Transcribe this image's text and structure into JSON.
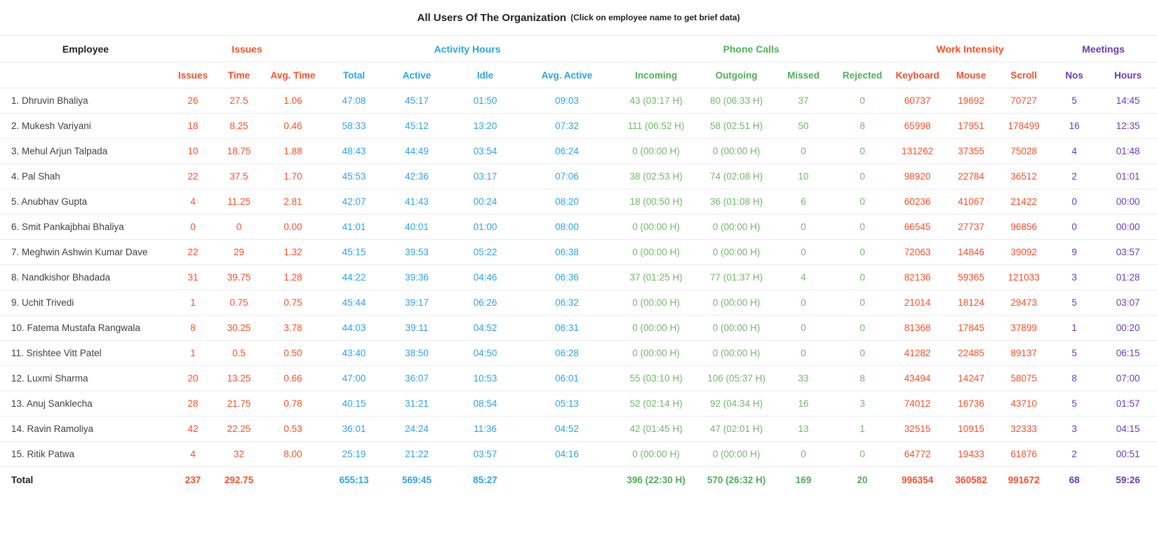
{
  "title": {
    "main": "All Users Of The Organization",
    "hint": "(Click on employee name to get brief data)"
  },
  "colors": {
    "red": "#fb4c24",
    "blue": "#29a3e6",
    "green": "#6dba63",
    "green_head": "#4caf55",
    "purple": "#6939bb",
    "text_dark": "#202124",
    "text_name": "#3c4043",
    "border": "#ececec"
  },
  "table": {
    "groups": [
      {
        "label": "Employee",
        "span": 1,
        "color": "dark"
      },
      {
        "label": "Issues",
        "span": 3,
        "color": "red"
      },
      {
        "label": "Activity Hours",
        "span": 4,
        "color": "blue"
      },
      {
        "label": "Phone Calls",
        "span": 4,
        "color": "greenh"
      },
      {
        "label": "Work Intensity",
        "span": 3,
        "color": "red"
      },
      {
        "label": "Meetings",
        "span": 2,
        "color": "purple"
      }
    ],
    "columns": [
      {
        "label": "Issues",
        "color": "red"
      },
      {
        "label": "Time",
        "color": "red"
      },
      {
        "label": "Avg. Time",
        "color": "red"
      },
      {
        "label": "Total",
        "color": "blue"
      },
      {
        "label": "Active",
        "color": "blue"
      },
      {
        "label": "Idle",
        "color": "blue"
      },
      {
        "label": "Avg. Active",
        "color": "blue"
      },
      {
        "label": "Incoming",
        "color": "greenh"
      },
      {
        "label": "Outgoing",
        "color": "greenh"
      },
      {
        "label": "Missed",
        "color": "greenh"
      },
      {
        "label": "Rejected",
        "color": "greenh"
      },
      {
        "label": "Keyboard",
        "color": "red"
      },
      {
        "label": "Mouse",
        "color": "red"
      },
      {
        "label": "Scroll",
        "color": "red"
      },
      {
        "label": "Nos",
        "color": "purple"
      },
      {
        "label": "Hours",
        "color": "purple"
      }
    ],
    "cell_colors": [
      "red",
      "red",
      "red",
      "blue",
      "blue",
      "blue",
      "blue",
      "green",
      "green",
      "green",
      "green",
      "red",
      "red",
      "red",
      "purple",
      "purple"
    ],
    "rows": [
      {
        "name": "1. Dhruvin Bhaliya",
        "cells": [
          "26",
          "27.5",
          "1.06",
          "47:08",
          "45:17",
          "01:50",
          "09:03",
          "43 (03:17 H)",
          "80 (06:33 H)",
          "37",
          "0",
          "60737",
          "19692",
          "70727",
          "5",
          "14:45"
        ]
      },
      {
        "name": "2. Mukesh Variyani",
        "cells": [
          "18",
          "8.25",
          "0.46",
          "58:33",
          "45:12",
          "13:20",
          "07:32",
          "111 (06:52 H)",
          "58 (02:51 H)",
          "50",
          "8",
          "65998",
          "17951",
          "178499",
          "16",
          "12:35"
        ]
      },
      {
        "name": "3. Mehul Arjun Talpada",
        "cells": [
          "10",
          "18.75",
          "1.88",
          "48:43",
          "44:49",
          "03:54",
          "06:24",
          "0 (00:00 H)",
          "0 (00:00 H)",
          "0",
          "0",
          "131262",
          "37355",
          "75028",
          "4",
          "01:48"
        ]
      },
      {
        "name": "4. Pal Shah",
        "cells": [
          "22",
          "37.5",
          "1.70",
          "45:53",
          "42:36",
          "03:17",
          "07:06",
          "38 (02:53 H)",
          "74 (02:08 H)",
          "10",
          "0",
          "98920",
          "22784",
          "36512",
          "2",
          "01:01"
        ]
      },
      {
        "name": "5. Anubhav Gupta",
        "cells": [
          "4",
          "11.25",
          "2.81",
          "42:07",
          "41:43",
          "00:24",
          "08:20",
          "18 (00:50 H)",
          "36 (01:08 H)",
          "6",
          "0",
          "60236",
          "41067",
          "21422",
          "0",
          "00:00"
        ]
      },
      {
        "name": "6. Smit Pankajbhai Bhaliya",
        "cells": [
          "0",
          "0",
          "0.00",
          "41:01",
          "40:01",
          "01:00",
          "08:00",
          "0 (00:00 H)",
          "0 (00:00 H)",
          "0",
          "0",
          "66545",
          "27737",
          "96856",
          "0",
          "00:00"
        ]
      },
      {
        "name": "7. Meghwin Ashwin Kumar Dave",
        "cells": [
          "22",
          "29",
          "1.32",
          "45:15",
          "39:53",
          "05:22",
          "06:38",
          "0 (00:00 H)",
          "0 (00:00 H)",
          "0",
          "0",
          "72063",
          "14846",
          "39092",
          "9",
          "03:57"
        ]
      },
      {
        "name": "8. Nandkishor Bhadada",
        "cells": [
          "31",
          "39.75",
          "1.28",
          "44:22",
          "39:36",
          "04:46",
          "06:36",
          "37 (01:25 H)",
          "77 (01:37 H)",
          "4",
          "0",
          "82136",
          "59365",
          "121033",
          "3",
          "01:28"
        ]
      },
      {
        "name": "9. Uchit Trivedi",
        "cells": [
          "1",
          "0.75",
          "0.75",
          "45:44",
          "39:17",
          "06:26",
          "06:32",
          "0 (00:00 H)",
          "0 (00:00 H)",
          "0",
          "0",
          "21014",
          "18124",
          "29473",
          "5",
          "03:07"
        ]
      },
      {
        "name": "10. Fatema Mustafa Rangwala",
        "cells": [
          "8",
          "30.25",
          "3.78",
          "44:03",
          "39:11",
          "04:52",
          "06:31",
          "0 (00:00 H)",
          "0 (00:00 H)",
          "0",
          "0",
          "81368",
          "17845",
          "37899",
          "1",
          "00:20"
        ]
      },
      {
        "name": "11. Srishtee Vitt Patel",
        "cells": [
          "1",
          "0.5",
          "0.50",
          "43:40",
          "38:50",
          "04:50",
          "06:28",
          "0 (00:00 H)",
          "0 (00:00 H)",
          "0",
          "0",
          "41282",
          "22485",
          "89137",
          "5",
          "06:15"
        ]
      },
      {
        "name": "12. Luxmi Sharma",
        "cells": [
          "20",
          "13.25",
          "0.66",
          "47:00",
          "36:07",
          "10:53",
          "06:01",
          "55 (03:10 H)",
          "106 (05:37 H)",
          "33",
          "8",
          "43494",
          "14247",
          "58075",
          "8",
          "07:00"
        ]
      },
      {
        "name": "13. Anuj Sanklecha",
        "cells": [
          "28",
          "21.75",
          "0.78",
          "40:15",
          "31:21",
          "08:54",
          "05:13",
          "52 (02:14 H)",
          "92 (04:34 H)",
          "16",
          "3",
          "74012",
          "16736",
          "43710",
          "5",
          "01:57"
        ]
      },
      {
        "name": "14. Ravin Ramoliya",
        "cells": [
          "42",
          "22.25",
          "0.53",
          "36:01",
          "24:24",
          "11:36",
          "04:52",
          "42 (01:45 H)",
          "47 (02:01 H)",
          "13",
          "1",
          "32515",
          "10915",
          "32333",
          "3",
          "04:15"
        ]
      },
      {
        "name": "15. Ritik Patwa",
        "cells": [
          "4",
          "32",
          "8.00",
          "25:19",
          "21:22",
          "03:57",
          "04:16",
          "0 (00:00 H)",
          "0 (00:00 H)",
          "0",
          "0",
          "64772",
          "19433",
          "61876",
          "2",
          "00:51"
        ]
      }
    ],
    "total": {
      "label": "Total",
      "cells": [
        "237",
        "292.75",
        "",
        "655:13",
        "569:45",
        "85:27",
        "",
        "396 (22:30 H)",
        "570 (26:32 H)",
        "169",
        "20",
        "996354",
        "360582",
        "991672",
        "68",
        "59:26"
      ]
    }
  }
}
